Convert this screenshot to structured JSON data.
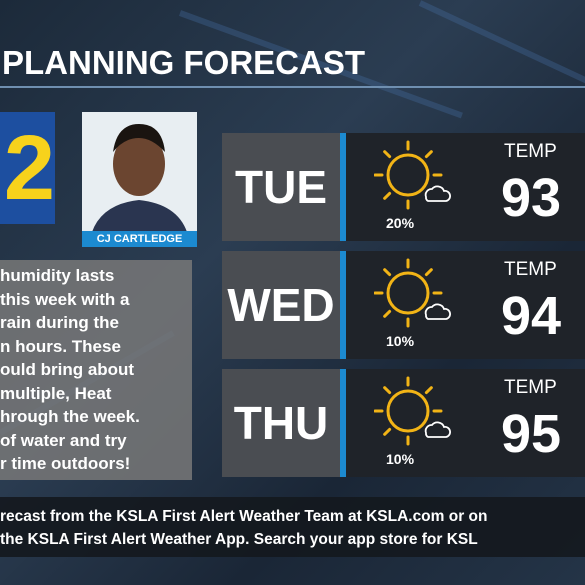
{
  "header": {
    "title": "PLANNING FORECAST"
  },
  "logo": "2",
  "presenter": {
    "name": "CJ CARTLEDGE"
  },
  "message": {
    "lines": [
      "humidity lasts",
      "this week with a",
      "rain during the",
      "n hours. These",
      "ould bring about",
      "multiple, Heat",
      "hrough the week.",
      "of water and try",
      "r time outdoors!"
    ]
  },
  "forecast": [
    {
      "day": "TUE",
      "precip": "20%",
      "temp_label": "TEMP",
      "temp": "93"
    },
    {
      "day": "WED",
      "precip": "10%",
      "temp_label": "TEMP",
      "temp": "94"
    },
    {
      "day": "THU",
      "precip": "10%",
      "temp_label": "TEMP",
      "temp": "95"
    }
  ],
  "footer": {
    "lines": [
      "recast from the KSLA First Alert Weather Team at KSLA.com or on",
      "the KSLA First Alert Weather App. Search your app store for KSL"
    ]
  }
}
